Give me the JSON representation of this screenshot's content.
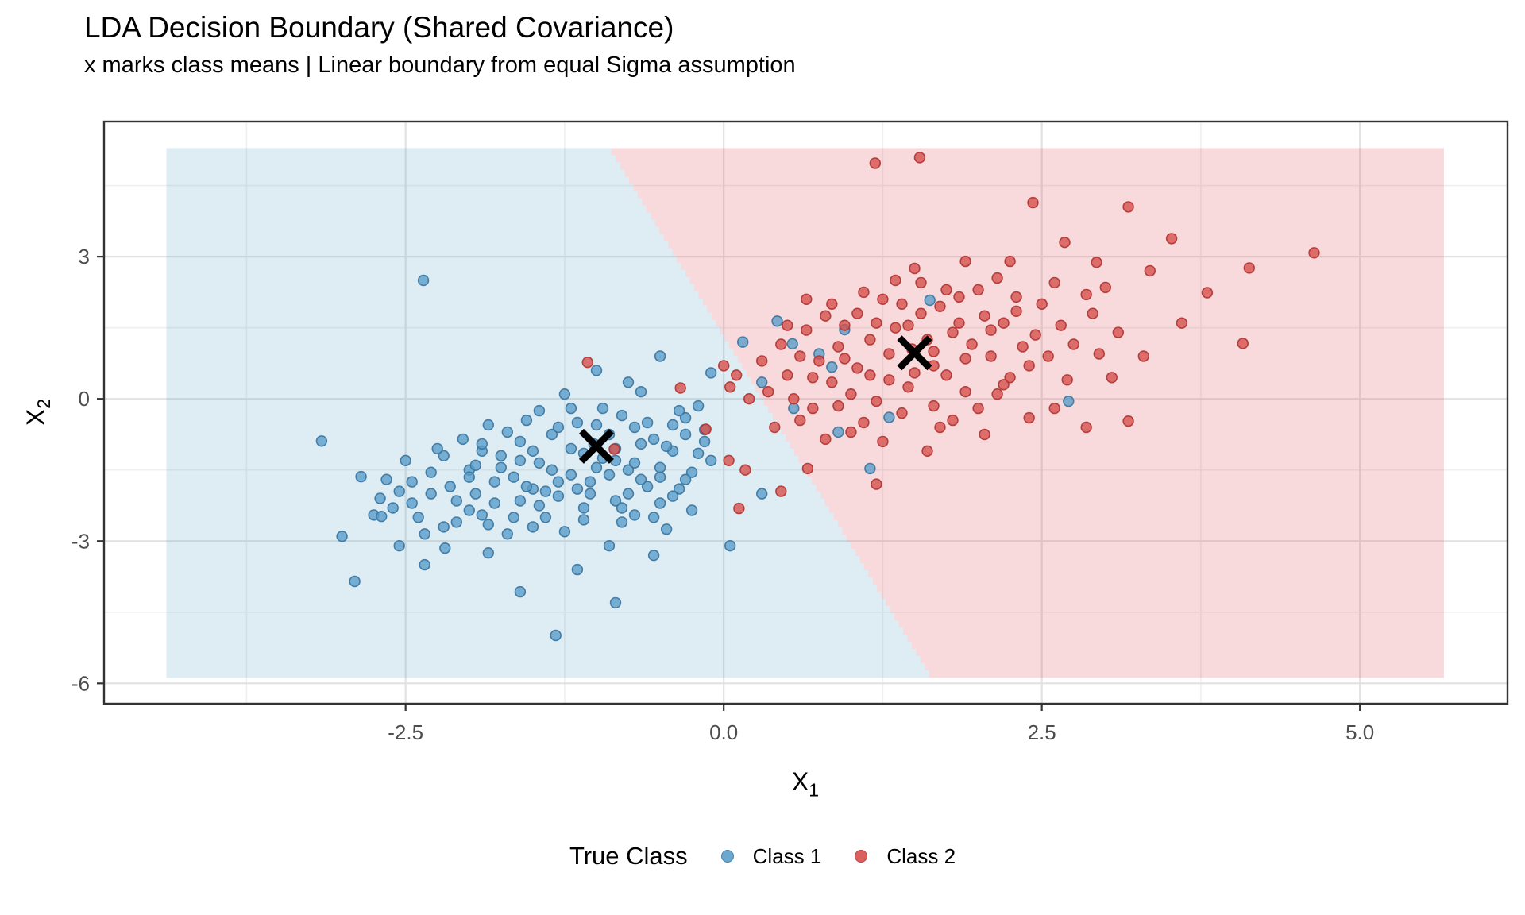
{
  "chart_data": {
    "type": "scatter",
    "title": "LDA Decision Boundary (Shared Covariance)",
    "subtitle": "x marks class means | Linear boundary from equal Sigma assumption",
    "xlabel_base": "X",
    "xlabel_sub": "1",
    "ylabel_base": "X",
    "ylabel_sub": "2",
    "xlim": [
      -4.87,
      6.16
    ],
    "ylim": [
      -6.43,
      5.85
    ],
    "x_ticks": [
      {
        "value": -2.5,
        "label": "-2.5"
      },
      {
        "value": 0,
        "label": "0.0"
      },
      {
        "value": 2.5,
        "label": "2.5"
      },
      {
        "value": 5,
        "label": "5.0"
      }
    ],
    "y_ticks": [
      {
        "value": 3,
        "label": "3"
      },
      {
        "value": 0,
        "label": "0"
      },
      {
        "value": -3,
        "label": "-3"
      },
      {
        "value": -6,
        "label": "-6"
      }
    ],
    "x_minor": [
      -3.75,
      -1.25,
      1.25,
      3.75
    ],
    "y_minor": [
      4.5,
      1.5,
      -1.5,
      -4.5
    ],
    "grid": true,
    "legend": {
      "title": "True Class",
      "position": "bottom",
      "items": [
        {
          "label": "Class 1",
          "color_key": "class1"
        },
        {
          "label": "Class 2",
          "color_key": "class2"
        }
      ]
    },
    "means": {
      "class1": [
        -1.0,
        -1.0
      ],
      "class2": [
        1.5,
        0.97
      ]
    },
    "decision_boundary": {
      "x_at_y0": 0.3,
      "dx_per_dy": -0.2266,
      "region_x": [
        -4.38,
        5.66
      ],
      "region_y": [
        -5.88,
        5.29
      ]
    },
    "colors": {
      "class1": "#5b9ec9",
      "class1_stroke": "#38749f",
      "class2": "#d6514d",
      "class2_stroke": "#b03330",
      "region_class1": "rgba(91,158,201,0.20)",
      "region_class2": "rgba(224,92,102,0.23)",
      "grid_major": "#e2e2e2",
      "grid_minor": "#efefef",
      "panel_border": "#333333",
      "tick_text": "#4d4d4d",
      "mean_marker": "#000000"
    },
    "series": [
      {
        "name": "Class 1",
        "points": [
          [
            -1.02,
            -0.95
          ],
          [
            -0.85,
            -1.3
          ],
          [
            -1.2,
            -1.6
          ],
          [
            -0.7,
            -0.6
          ],
          [
            -1.5,
            -1.9
          ],
          [
            -0.4,
            -1.1
          ],
          [
            -1.8,
            -2.2
          ],
          [
            -0.95,
            -0.2
          ],
          [
            -1.35,
            -0.75
          ],
          [
            -0.6,
            -1.85
          ],
          [
            -2.0,
            -1.5
          ],
          [
            -0.3,
            -0.4
          ],
          [
            -1.6,
            -0.9
          ],
          [
            -1.1,
            -2.3
          ],
          [
            -0.8,
            -2.6
          ],
          [
            -2.3,
            -2.0
          ],
          [
            -0.15,
            -0.9
          ],
          [
            -1.25,
            0.1
          ],
          [
            -1.9,
            -1.1
          ],
          [
            -0.5,
            -2.2
          ],
          [
            -2.1,
            -2.6
          ],
          [
            -1.45,
            -1.35
          ],
          [
            -0.25,
            -1.55
          ],
          [
            -1.7,
            -2.85
          ],
          [
            -0.9,
            -3.1
          ],
          [
            -2.45,
            -1.75
          ],
          [
            -1.05,
            -1.75
          ],
          [
            -0.65,
            0.15
          ],
          [
            -1.55,
            -0.45
          ],
          [
            -2.6,
            -2.3
          ],
          [
            -0.45,
            -2.75
          ],
          [
            -1.3,
            -2.05
          ],
          [
            -1.85,
            -0.55
          ],
          [
            -0.1,
            -1.3
          ],
          [
            -2.2,
            -1.2
          ],
          [
            -0.75,
            -1.5
          ],
          [
            -1.65,
            -1.65
          ],
          [
            -1.15,
            -0.5
          ],
          [
            -0.35,
            -1.9
          ],
          [
            -2.35,
            -2.85
          ],
          [
            -0.55,
            -0.85
          ],
          [
            -1.4,
            -2.5
          ],
          [
            -1.95,
            -2.0
          ],
          [
            -0.2,
            -0.15
          ],
          [
            -2.5,
            -1.3
          ],
          [
            -0.85,
            -2.15
          ],
          [
            -1.75,
            -1.2
          ],
          [
            -1.0,
            -1.45
          ],
          [
            -2.05,
            -0.85
          ],
          [
            -1.5,
            -2.7
          ],
          [
            -0.4,
            -0.55
          ],
          [
            -1.2,
            -1.05
          ],
          [
            -2.7,
            -2.1
          ],
          [
            -0.9,
            -0.75
          ],
          [
            -1.6,
            -2.15
          ],
          [
            -0.7,
            -2.45
          ],
          [
            -2.15,
            -1.85
          ],
          [
            -0.3,
            -1.7
          ],
          [
            -1.35,
            -1.5
          ],
          [
            -1.9,
            -2.45
          ],
          [
            -0.5,
            -1.45
          ],
          [
            -2.4,
            -2.5
          ],
          [
            -1.1,
            -1.15
          ],
          [
            -0.8,
            -0.35
          ],
          [
            -1.7,
            -0.7
          ],
          [
            -1.05,
            -2.0
          ],
          [
            -0.25,
            -2.35
          ],
          [
            -2.25,
            -1.05
          ],
          [
            -0.65,
            -1.7
          ],
          [
            -1.45,
            -0.25
          ],
          [
            -1.8,
            -1.75
          ],
          [
            -0.45,
            -1.0
          ],
          [
            -2.55,
            -1.95
          ],
          [
            -1.25,
            -2.8
          ],
          [
            -0.95,
            -1.25
          ],
          [
            -1.55,
            -1.85
          ],
          [
            -0.15,
            -0.65
          ],
          [
            -2.0,
            -2.35
          ],
          [
            -0.75,
            -2.0
          ],
          [
            -1.3,
            -0.6
          ],
          [
            -1.95,
            -1.4
          ],
          [
            -0.55,
            -2.5
          ],
          [
            -2.3,
            -1.55
          ],
          [
            -1.15,
            -1.9
          ],
          [
            -0.85,
            -1.05
          ],
          [
            -1.65,
            -2.5
          ],
          [
            -0.35,
            -0.25
          ],
          [
            -2.1,
            -2.15
          ],
          [
            -1.0,
            -0.55
          ],
          [
            -0.7,
            -1.35
          ],
          [
            -1.5,
            -1.1
          ],
          [
            -2.65,
            -1.7
          ],
          [
            -0.2,
            -1.15
          ],
          [
            -1.4,
            -1.95
          ],
          [
            -1.85,
            -2.65
          ],
          [
            -0.6,
            -0.5
          ],
          [
            -2.45,
            -2.2
          ],
          [
            -1.1,
            -2.55
          ],
          [
            -0.9,
            -1.6
          ],
          [
            -1.75,
            -1.45
          ],
          [
            -0.4,
            -2.05
          ],
          [
            -2.2,
            -2.7
          ],
          [
            -1.2,
            -0.2
          ],
          [
            -0.5,
            -1.65
          ],
          [
            -1.6,
            -1.3
          ],
          [
            -0.3,
            -0.75
          ],
          [
            -2.0,
            -1.65
          ],
          [
            -0.8,
            -2.3
          ],
          [
            -1.45,
            -2.25
          ],
          [
            -2.75,
            -2.45
          ],
          [
            -0.65,
            -0.95
          ],
          [
            -1.3,
            -1.75
          ],
          [
            -1.9,
            -0.95
          ],
          [
            -3.16,
            -0.89
          ],
          [
            -2.85,
            -1.64
          ],
          [
            -2.69,
            -2.48
          ],
          [
            -3.0,
            -2.9
          ],
          [
            -2.19,
            -3.15
          ],
          [
            -1.32,
            -4.99
          ],
          [
            -1.6,
            -4.07
          ],
          [
            -0.85,
            -4.3
          ],
          [
            -1.15,
            -3.6
          ],
          [
            -0.55,
            -3.3
          ],
          [
            -2.35,
            -3.5
          ],
          [
            -1.85,
            -3.25
          ],
          [
            -2.9,
            -3.85
          ],
          [
            -2.55,
            -3.1
          ],
          [
            -2.36,
            2.5
          ],
          [
            0.42,
            1.64
          ],
          [
            0.15,
            1.2
          ],
          [
            -0.5,
            0.9
          ],
          [
            0.75,
            0.95
          ],
          [
            0.3,
            0.35
          ],
          [
            0.55,
            -0.2
          ],
          [
            0.9,
            -0.7
          ],
          [
            1.15,
            -1.47
          ],
          [
            1.3,
            -0.39
          ],
          [
            1.62,
            2.08
          ],
          [
            0.95,
            1.46
          ],
          [
            2.71,
            -0.05
          ],
          [
            0.85,
            0.67
          ],
          [
            0.54,
            1.16
          ],
          [
            0.3,
            -2.0
          ],
          [
            0.05,
            -3.1
          ],
          [
            -0.1,
            0.55
          ],
          [
            -0.75,
            0.35
          ],
          [
            -1.0,
            0.6
          ]
        ]
      },
      {
        "name": "Class 2",
        "points": [
          [
            1.48,
            1.05
          ],
          [
            1.65,
            0.7
          ],
          [
            1.3,
            0.4
          ],
          [
            1.8,
            1.4
          ],
          [
            1.0,
            0.1
          ],
          [
            2.1,
            0.9
          ],
          [
            0.7,
            -0.2
          ],
          [
            1.55,
            1.8
          ],
          [
            1.15,
            1.25
          ],
          [
            1.9,
            0.15
          ],
          [
            0.5,
            0.5
          ],
          [
            2.2,
            1.6
          ],
          [
            0.9,
            1.1
          ],
          [
            1.4,
            -0.3
          ],
          [
            1.7,
            -0.6
          ],
          [
            0.2,
            0.0
          ],
          [
            2.35,
            1.1
          ],
          [
            1.25,
            2.1
          ],
          [
            0.6,
            0.9
          ],
          [
            2.0,
            -0.2
          ],
          [
            0.4,
            -0.6
          ],
          [
            1.05,
            0.65
          ],
          [
            2.25,
            0.45
          ],
          [
            0.8,
            -0.85
          ],
          [
            1.6,
            -1.1
          ],
          [
            0.05,
            0.25
          ],
          [
            1.45,
            0.25
          ],
          [
            1.85,
            2.15
          ],
          [
            0.95,
            1.55
          ],
          [
            2.05,
            -0.75
          ],
          [
            1.2,
            -0.05
          ],
          [
            0.65,
            1.45
          ],
          [
            2.4,
            0.7
          ],
          [
            0.3,
            0.8
          ],
          [
            1.75,
            0.5
          ],
          [
            0.85,
            0.35
          ],
          [
            1.35,
            1.5
          ],
          [
            2.15,
            0.1
          ],
          [
            1.95,
            1.15
          ],
          [
            1.1,
            -0.5
          ],
          [
            0.55,
            0.0
          ],
          [
            2.3,
            1.85
          ],
          [
            0.0,
            0.7
          ],
          [
            1.65,
            -0.15
          ],
          [
            0.75,
            0.8
          ],
          [
            1.5,
            0.55
          ],
          [
            1.9,
            0.85
          ],
          [
            0.45,
            1.15
          ],
          [
            1.0,
            -0.7
          ],
          [
            2.1,
            1.45
          ],
          [
            1.3,
            0.95
          ],
          [
            1.6,
            1.25
          ],
          [
            0.9,
            -0.15
          ],
          [
            1.8,
            -0.45
          ],
          [
            0.35,
            0.15
          ],
          [
            2.2,
            0.3
          ],
          [
            1.15,
            0.5
          ],
          [
            0.6,
            -0.45
          ],
          [
            1.45,
            1.55
          ],
          [
            0.1,
            0.5
          ],
          [
            2.45,
            1.35
          ],
          [
            0.85,
            2.0
          ],
          [
            1.7,
            1.95
          ],
          [
            2.55,
            0.9
          ],
          [
            1.05,
            1.8
          ],
          [
            2.0,
            2.3
          ],
          [
            1.25,
            -0.9
          ],
          [
            2.65,
            1.55
          ],
          [
            0.7,
            0.45
          ],
          [
            1.55,
            2.45
          ],
          [
            2.3,
            2.15
          ],
          [
            0.95,
            0.85
          ],
          [
            1.85,
            1.6
          ],
          [
            2.5,
            2.0
          ],
          [
            1.1,
            2.25
          ],
          [
            2.75,
            1.15
          ],
          [
            1.4,
            2.0
          ],
          [
            2.05,
            1.75
          ],
          [
            0.5,
            1.55
          ],
          [
            2.6,
            2.45
          ],
          [
            1.65,
            1.0
          ],
          [
            2.9,
            1.8
          ],
          [
            1.2,
            1.6
          ],
          [
            2.4,
            -0.4
          ],
          [
            0.8,
            1.75
          ],
          [
            2.85,
            2.2
          ],
          [
            1.5,
            2.75
          ],
          [
            2.15,
            2.55
          ],
          [
            0.65,
            2.1
          ],
          [
            3.0,
            2.35
          ],
          [
            1.75,
            2.3
          ],
          [
            2.7,
            0.4
          ],
          [
            1.35,
            2.5
          ],
          [
            2.95,
            0.95
          ],
          [
            2.25,
            2.9
          ],
          [
            1.9,
            2.9
          ],
          [
            3.1,
            1.4
          ],
          [
            1.19,
            4.97
          ],
          [
            1.54,
            5.09
          ],
          [
            2.43,
            4.14
          ],
          [
            3.18,
            4.05
          ],
          [
            3.52,
            3.38
          ],
          [
            2.93,
            2.88
          ],
          [
            4.13,
            2.76
          ],
          [
            4.64,
            3.08
          ],
          [
            4.08,
            1.17
          ],
          [
            3.8,
            2.24
          ],
          [
            2.68,
            3.3
          ],
          [
            3.35,
            2.7
          ],
          [
            3.6,
            1.6
          ],
          [
            3.3,
            0.9
          ],
          [
            3.05,
            0.45
          ],
          [
            2.6,
            -0.2
          ],
          [
            3.18,
            -0.47
          ],
          [
            2.85,
            -0.6
          ],
          [
            -1.07,
            0.77
          ],
          [
            -0.86,
            -1.06
          ],
          [
            -0.14,
            -0.64
          ],
          [
            -0.34,
            0.23
          ],
          [
            0.17,
            -1.5
          ],
          [
            0.04,
            -1.3
          ],
          [
            0.66,
            -1.47
          ],
          [
            1.2,
            -1.8
          ],
          [
            0.12,
            -2.31
          ],
          [
            0.45,
            -1.95
          ]
        ]
      }
    ]
  }
}
